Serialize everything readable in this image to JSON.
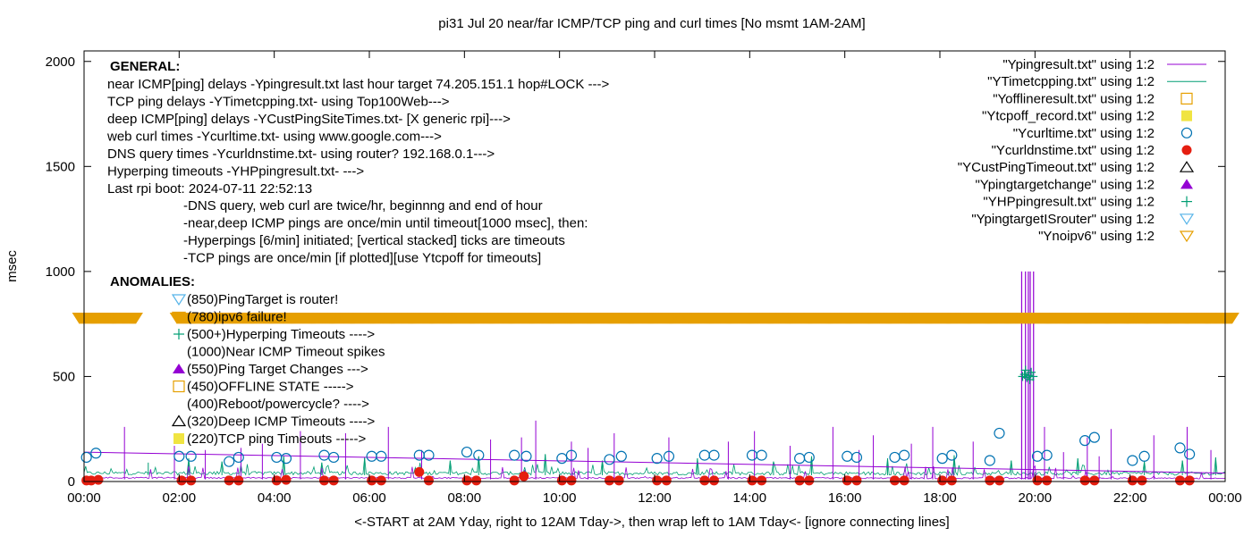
{
  "chart_data": {
    "type": "line",
    "title": "pi31 Jul 20  near/far ICMP/TCP ping and curl times [No msmt 1AM-2AM]",
    "xlabel": "<-START at 2AM Yday, right to 12AM Tday->, then wrap left to 1AM Tday<- [ignore connecting lines]",
    "ylabel": "msec",
    "ylim": [
      0,
      2050
    ],
    "xlim_hours": [
      0,
      24
    ],
    "y_ticks": [
      "0",
      "500",
      "1000",
      "1500",
      "2000"
    ],
    "x_ticks": [
      "00:00",
      "02:00",
      "04:00",
      "06:00",
      "08:00",
      "10:00",
      "12:00",
      "14:00",
      "16:00",
      "18:00",
      "20:00",
      "22:00",
      "00:00"
    ],
    "grid": false,
    "legend_position": "top-right",
    "legend": [
      {
        "label": "\"Ypingresult.txt\" using 1:2",
        "style": "line",
        "color": "#9400d3"
      },
      {
        "label": "\"YTimetcpping.txt\" using 1:2",
        "style": "line",
        "color": "#009e73"
      },
      {
        "label": "\"Yofflineresult.txt\" using 1:2",
        "style": "open-square",
        "color": "#e69f00"
      },
      {
        "label": "\"Ytcpoff_record.txt\" using 1:2",
        "style": "filled-square",
        "color": "#f0e442"
      },
      {
        "label": "\"Ycurltime.txt\" using 1:2",
        "style": "open-circle",
        "color": "#0072b2"
      },
      {
        "label": "\"Ycurldnstime.txt\" using 1:2",
        "style": "filled-circle",
        "color": "#e51e10"
      },
      {
        "label": "\"YCustPingTimeout.txt\" using 1:2",
        "style": "open-triangle",
        "color": "#000000"
      },
      {
        "label": "\"Ypingtargetchange\" using 1:2",
        "style": "filled-triangle",
        "color": "#9400d3"
      },
      {
        "label": "\"YHPpingresult.txt\" using 1:2",
        "style": "plus",
        "color": "#009e73"
      },
      {
        "label": "\"YpingtargetISrouter\" using 1:2",
        "style": "open-down-triangle",
        "color": "#56b4e9"
      },
      {
        "label": "\"Ynoipv6\" using 1:2",
        "style": "open-down-triangle",
        "color": "#e69f00"
      }
    ],
    "general_heading": "GENERAL:",
    "general_lines": [
      "near ICMP[ping] delays -Ypingresult.txt last hour target 74.205.151.1 hop#LOCK --->",
      "TCP ping delays -YTimetcpping.txt- using Top100Web--->",
      "deep ICMP[ping] delays -YCustPingSiteTimes.txt- [X generic rpi]--->",
      "web curl times -Ycurltime.txt- using www.google.com--->",
      "DNS query times -Ycurldnstime.txt- using router? 192.168.0.1--->",
      "Hyperping timeouts -YHPpingresult.txt- --->",
      "Last rpi boot: 2024-07-11 22:52:13"
    ],
    "general_notes": [
      "-DNS query, web curl are twice/hr, beginnng and end of hour",
      "-near,deep ICMP pings are once/min until timeout[1000 msec], then:",
      "  -Hyperpings [6/min] initiated; [vertical stacked] ticks are timeouts",
      "-TCP pings are once/min [if plotted][use Ytcpoff for timeouts]"
    ],
    "anomalies_heading": "ANOMALIES:",
    "anomalies": [
      {
        "text": "(850)PingTarget is router!",
        "y": 850,
        "marker": "open-down-triangle",
        "color": "#56b4e9"
      },
      {
        "text": "(780)ipv6 failure!",
        "y": 780,
        "marker": "open-down-triangle",
        "color": "#e69f00"
      },
      {
        "text": "(500+)Hyperping Timeouts ---->",
        "y": 700,
        "marker": "plus",
        "color": "#009e73"
      },
      {
        "text": "(1000)Near ICMP Timeout spikes",
        "y": 620,
        "marker": "none",
        "color": "#9400d3"
      },
      {
        "text": "(550)Ping Target Changes --->",
        "y": 540,
        "marker": "filled-triangle",
        "color": "#9400d3"
      },
      {
        "text": "(450)OFFLINE STATE ----->",
        "y": 460,
        "marker": "open-square",
        "color": "#e69f00"
      },
      {
        "text": "(400)Reboot/powercycle? ---->",
        "y": 380,
        "marker": "none",
        "color": "#000000"
      },
      {
        "text": "(320)Deep ICMP Timeouts ---->",
        "y": 300,
        "marker": "open-triangle",
        "color": "#000000"
      },
      {
        "text": "(220)TCP ping Timeouts ----->",
        "y": 220,
        "marker": "filled-square",
        "color": "#f0e442"
      }
    ],
    "noipv6_band": {
      "y": 780,
      "color": "#e69f00",
      "gap_hours": [
        1.1,
        1.95
      ]
    },
    "ping_baseline": {
      "series": "Ypingresult.txt",
      "start": 15,
      "end": 12,
      "noise": 6
    },
    "tcp_baseline": {
      "series": "YTimetcpping.txt",
      "start": 40,
      "end": 38,
      "noise": 8
    },
    "ping_spikes": [
      {
        "h": 0.85,
        "v": 260
      },
      {
        "h": 1.9,
        "v": 170
      },
      {
        "h": 2.55,
        "v": 150
      },
      {
        "h": 3.3,
        "v": 160
      },
      {
        "h": 3.75,
        "v": 180
      },
      {
        "h": 4.55,
        "v": 240
      },
      {
        "h": 5.5,
        "v": 230
      },
      {
        "h": 6.4,
        "v": 260
      },
      {
        "h": 7.1,
        "v": 150
      },
      {
        "h": 8.55,
        "v": 200
      },
      {
        "h": 9.2,
        "v": 210
      },
      {
        "h": 9.5,
        "v": 290
      },
      {
        "h": 10.25,
        "v": 190
      },
      {
        "h": 10.6,
        "v": 160
      },
      {
        "h": 11.15,
        "v": 230
      },
      {
        "h": 12.3,
        "v": 210
      },
      {
        "h": 13.55,
        "v": 190
      },
      {
        "h": 14.1,
        "v": 240
      },
      {
        "h": 14.85,
        "v": 170
      },
      {
        "h": 15.75,
        "v": 260
      },
      {
        "h": 16.3,
        "v": 150
      },
      {
        "h": 16.6,
        "v": 220
      },
      {
        "h": 17.4,
        "v": 180
      },
      {
        "h": 17.85,
        "v": 260
      },
      {
        "h": 18.7,
        "v": 190
      },
      {
        "h": 20.2,
        "v": 260
      },
      {
        "h": 20.6,
        "v": 140
      },
      {
        "h": 21.1,
        "v": 210
      },
      {
        "h": 21.35,
        "v": 120
      },
      {
        "h": 21.6,
        "v": 250
      },
      {
        "h": 22.5,
        "v": 220
      },
      {
        "h": 23.2,
        "v": 260
      },
      {
        "h": 23.7,
        "v": 150
      }
    ],
    "ping_timeout_spikes": [
      {
        "h": 19.72,
        "v": 1000
      },
      {
        "h": 19.8,
        "v": 1000
      },
      {
        "h": 19.86,
        "v": 1000
      },
      {
        "h": 19.9,
        "v": 1000
      },
      {
        "h": 19.97,
        "v": 1000
      }
    ],
    "tcp_spikes": [
      {
        "h": 1.35,
        "v": 90
      },
      {
        "h": 2.2,
        "v": 110
      },
      {
        "h": 2.9,
        "v": 95
      },
      {
        "h": 4.2,
        "v": 120
      },
      {
        "h": 5.0,
        "v": 90
      },
      {
        "h": 5.9,
        "v": 115
      },
      {
        "h": 7.7,
        "v": 100
      },
      {
        "h": 8.3,
        "v": 120
      },
      {
        "h": 9.7,
        "v": 130
      },
      {
        "h": 10.9,
        "v": 100
      },
      {
        "h": 12.9,
        "v": 110
      },
      {
        "h": 14.5,
        "v": 95
      },
      {
        "h": 15.3,
        "v": 120
      },
      {
        "h": 16.9,
        "v": 110
      },
      {
        "h": 18.3,
        "v": 125
      },
      {
        "h": 19.5,
        "v": 100
      },
      {
        "h": 20.9,
        "v": 110
      },
      {
        "h": 22.3,
        "v": 95
      },
      {
        "h": 23.1,
        "v": 100
      },
      {
        "h": 23.8,
        "v": 115
      }
    ],
    "hyperping_timeouts": [
      {
        "h": 19.74,
        "v": 500
      },
      {
        "h": 19.78,
        "v": 510
      },
      {
        "h": 19.83,
        "v": 495
      },
      {
        "h": 19.87,
        "v": 505
      },
      {
        "h": 19.92,
        "v": 520
      },
      {
        "h": 19.96,
        "v": 500
      },
      {
        "h": 19.8,
        "v": 530
      },
      {
        "h": 19.89,
        "v": 485
      }
    ],
    "curl_times": [
      {
        "h": 0.05,
        "v": 115
      },
      {
        "h": 0.25,
        "v": 135
      },
      {
        "h": 2.0,
        "v": 120
      },
      {
        "h": 2.25,
        "v": 120
      },
      {
        "h": 3.05,
        "v": 95
      },
      {
        "h": 3.25,
        "v": 115
      },
      {
        "h": 4.05,
        "v": 115
      },
      {
        "h": 4.25,
        "v": 110
      },
      {
        "h": 5.05,
        "v": 125
      },
      {
        "h": 5.25,
        "v": 115
      },
      {
        "h": 6.05,
        "v": 120
      },
      {
        "h": 6.25,
        "v": 120
      },
      {
        "h": 7.05,
        "v": 125
      },
      {
        "h": 7.25,
        "v": 125
      },
      {
        "h": 8.05,
        "v": 140
      },
      {
        "h": 8.3,
        "v": 125
      },
      {
        "h": 9.05,
        "v": 125
      },
      {
        "h": 9.3,
        "v": 120
      },
      {
        "h": 10.05,
        "v": 110
      },
      {
        "h": 10.25,
        "v": 125
      },
      {
        "h": 11.05,
        "v": 105
      },
      {
        "h": 11.3,
        "v": 120
      },
      {
        "h": 12.05,
        "v": 110
      },
      {
        "h": 12.3,
        "v": 120
      },
      {
        "h": 13.05,
        "v": 125
      },
      {
        "h": 13.25,
        "v": 125
      },
      {
        "h": 14.05,
        "v": 125
      },
      {
        "h": 14.25,
        "v": 125
      },
      {
        "h": 15.05,
        "v": 110
      },
      {
        "h": 15.25,
        "v": 115
      },
      {
        "h": 16.05,
        "v": 120
      },
      {
        "h": 16.25,
        "v": 115
      },
      {
        "h": 17.05,
        "v": 115
      },
      {
        "h": 17.25,
        "v": 125
      },
      {
        "h": 18.05,
        "v": 110
      },
      {
        "h": 18.25,
        "v": 125
      },
      {
        "h": 19.05,
        "v": 100
      },
      {
        "h": 19.25,
        "v": 230
      },
      {
        "h": 20.05,
        "v": 120
      },
      {
        "h": 20.25,
        "v": 125
      },
      {
        "h": 21.05,
        "v": 195
      },
      {
        "h": 21.25,
        "v": 210
      },
      {
        "h": 22.05,
        "v": 100
      },
      {
        "h": 22.3,
        "v": 120
      },
      {
        "h": 23.05,
        "v": 160
      },
      {
        "h": 23.25,
        "v": 130
      }
    ],
    "dns_times": [
      {
        "h": 0.05,
        "v": 5
      },
      {
        "h": 0.15,
        "v": 5
      },
      {
        "h": 0.3,
        "v": 8
      },
      {
        "h": 2.05,
        "v": 5
      },
      {
        "h": 2.25,
        "v": 5
      },
      {
        "h": 3.05,
        "v": 5
      },
      {
        "h": 3.25,
        "v": 5
      },
      {
        "h": 4.05,
        "v": 5
      },
      {
        "h": 4.25,
        "v": 8
      },
      {
        "h": 5.05,
        "v": 5
      },
      {
        "h": 5.25,
        "v": 5
      },
      {
        "h": 6.05,
        "v": 5
      },
      {
        "h": 6.25,
        "v": 5
      },
      {
        "h": 7.05,
        "v": 45
      },
      {
        "h": 7.25,
        "v": 5
      },
      {
        "h": 8.05,
        "v": 5
      },
      {
        "h": 8.25,
        "v": 5
      },
      {
        "h": 9.05,
        "v": 5
      },
      {
        "h": 9.25,
        "v": 25
      },
      {
        "h": 10.05,
        "v": 5
      },
      {
        "h": 10.25,
        "v": 5
      },
      {
        "h": 11.05,
        "v": 5
      },
      {
        "h": 11.25,
        "v": 5
      },
      {
        "h": 12.05,
        "v": 5
      },
      {
        "h": 12.25,
        "v": 5
      },
      {
        "h": 13.05,
        "v": 5
      },
      {
        "h": 13.25,
        "v": 5
      },
      {
        "h": 14.05,
        "v": 5
      },
      {
        "h": 14.25,
        "v": 5
      },
      {
        "h": 15.05,
        "v": 5
      },
      {
        "h": 15.25,
        "v": 5
      },
      {
        "h": 16.05,
        "v": 5
      },
      {
        "h": 16.25,
        "v": 5
      },
      {
        "h": 17.05,
        "v": 5
      },
      {
        "h": 17.25,
        "v": 5
      },
      {
        "h": 18.05,
        "v": 5
      },
      {
        "h": 18.25,
        "v": 5
      },
      {
        "h": 19.05,
        "v": 5
      },
      {
        "h": 19.25,
        "v": 5
      },
      {
        "h": 20.05,
        "v": 5
      },
      {
        "h": 20.25,
        "v": 5
      },
      {
        "h": 21.05,
        "v": 5
      },
      {
        "h": 21.25,
        "v": 5
      },
      {
        "h": 22.05,
        "v": 5
      },
      {
        "h": 22.25,
        "v": 5
      },
      {
        "h": 23.05,
        "v": 5
      },
      {
        "h": 23.25,
        "v": 5
      }
    ],
    "curl_trend": [
      {
        "h": 0.0,
        "v": 140
      },
      {
        "h": 24.0,
        "v": 40
      }
    ]
  }
}
